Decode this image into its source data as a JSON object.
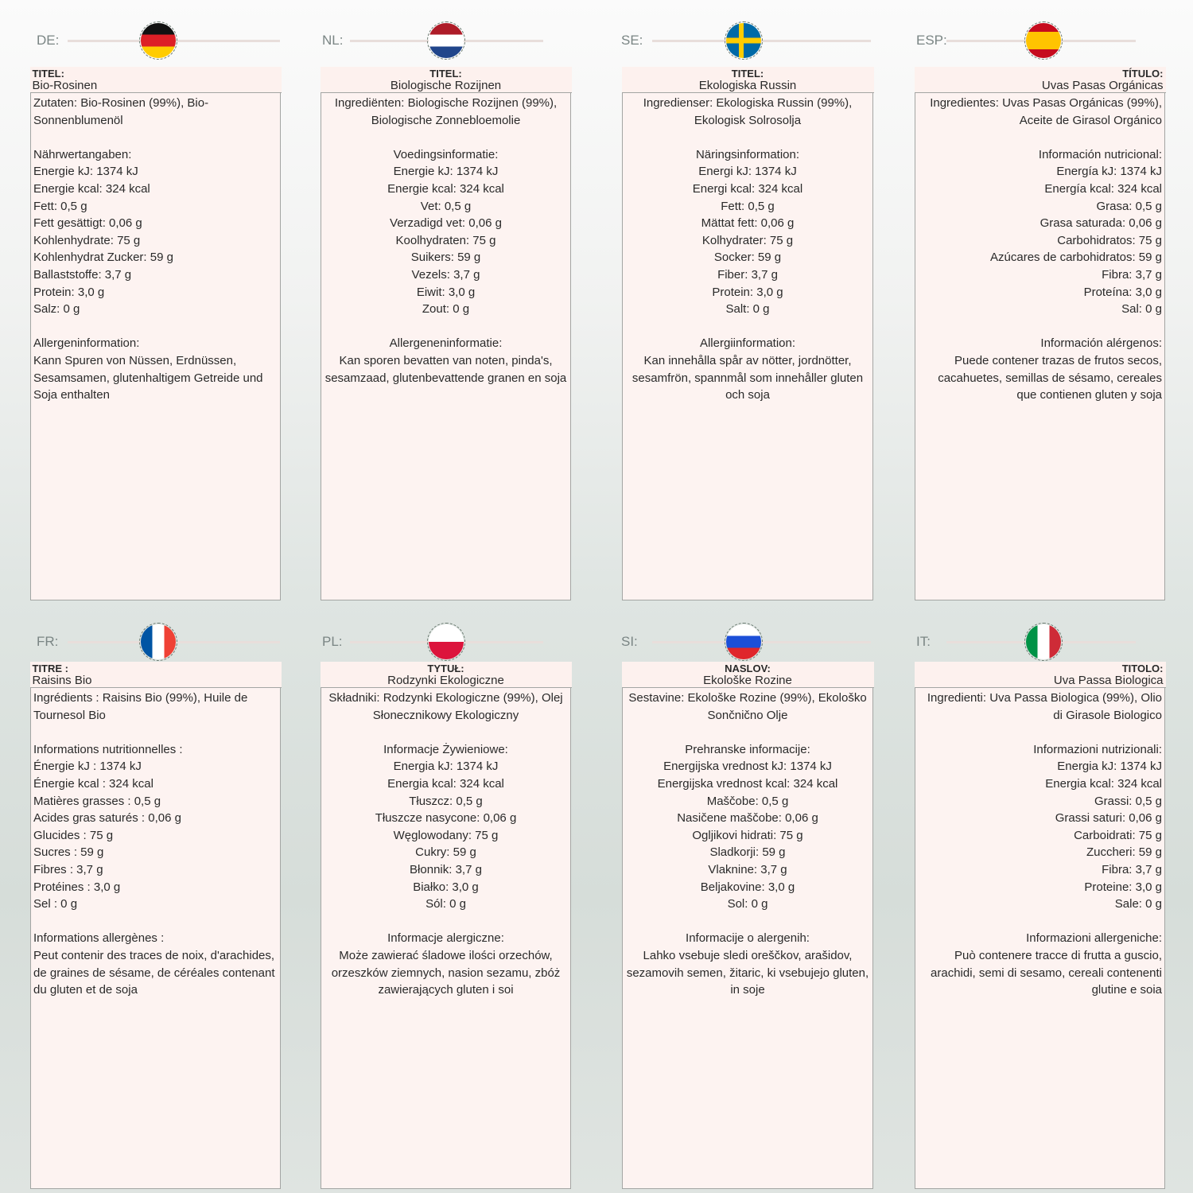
{
  "panels": [
    {
      "code": "DE:",
      "flag": "germany-flag",
      "align": "left",
      "label": "TITEL:",
      "title": "Bio-Rosinen",
      "ingredients": "Zutaten: Bio-Rosinen (99%), Bio-Sonnenblumenöl",
      "nutrition_heading": "Nährwertangaben:",
      "nutrition": [
        "Energie kJ: 1374 kJ",
        "Energie kcal: 324 kcal",
        "Fett: 0,5 g",
        "Fett gesättigt: 0,06 g",
        "Kohlenhydrate: 75 g",
        "Kohlenhydrat Zucker: 59 g",
        "Ballaststoffe: 3,7 g",
        "Protein: 3,0 g",
        "Salz: 0 g"
      ],
      "allergen_heading": "Allergeninformation:",
      "allergen_text": "Kann Spuren von Nüssen, Erdnüssen, Sesamsamen, glutenhaltigem Getreide und Soja enthalten"
    },
    {
      "code": "NL:",
      "flag": "netherlands-flag",
      "align": "center",
      "label": "TITEL:",
      "title": "Biologische Rozijnen",
      "ingredients": "Ingrediënten: Biologische Rozijnen (99%), Biologische Zonnebloemolie",
      "nutrition_heading": "Voedingsinformatie:",
      "nutrition": [
        "Energie kJ: 1374 kJ",
        "Energie kcal: 324 kcal",
        "Vet: 0,5 g",
        "Verzadigd vet: 0,06 g",
        "Koolhydraten: 75 g",
        "Suikers: 59 g",
        "Vezels: 3,7 g",
        "Eiwit: 3,0 g",
        "Zout: 0 g"
      ],
      "allergen_heading": "Allergeneninformatie:",
      "allergen_text": "Kan sporen bevatten van noten, pinda's, sesamzaad, glutenbevattende granen en soja"
    },
    {
      "code": "SE:",
      "flag": "sweden-flag",
      "align": "center",
      "label": "TITEL:",
      "title": "Ekologiska Russin",
      "ingredients": "Ingredienser: Ekologiska Russin (99%), Ekologisk Solrosolja",
      "nutrition_heading": "Näringsinformation:",
      "nutrition": [
        "Energi kJ: 1374 kJ",
        "Energi kcal: 324 kcal",
        "Fett: 0,5 g",
        "Mättat fett: 0,06 g",
        "Kolhydrater: 75 g",
        "Socker: 59 g",
        "Fiber: 3,7 g",
        "Protein: 3,0 g",
        "Salt: 0 g"
      ],
      "allergen_heading": "Allergiinformation:",
      "allergen_text": "Kan innehålla spår av nötter, jordnötter, sesamfrön, spannmål som innehåller gluten och soja"
    },
    {
      "code": "ESP:",
      "flag": "spain-flag",
      "align": "right",
      "label": "TÍTULO:",
      "title": "Uvas Pasas Orgánicas",
      "ingredients": "Ingredientes: Uvas Pasas Orgánicas (99%), Aceite de Girasol Orgánico",
      "nutrition_heading": "Información nutricional:",
      "nutrition": [
        "Energía kJ: 1374 kJ",
        "Energía kcal: 324 kcal",
        "Grasa: 0,5 g",
        "Grasa saturada: 0,06 g",
        "Carbohidratos: 75 g",
        "Azúcares de carbohidratos: 59 g",
        "Fibra: 3,7 g",
        "Proteína: 3,0 g",
        "Sal: 0 g"
      ],
      "allergen_heading": "Información alérgenos:",
      "allergen_text": "Puede contener trazas de frutos secos, cacahuetes, semillas de sésamo, cereales que contienen gluten y soja"
    },
    {
      "code": "FR:",
      "flag": "france-flag",
      "align": "left",
      "label": "TITRE :",
      "title": "Raisins Bio",
      "ingredients": "Ingrédients : Raisins Bio (99%), Huile de Tournesol Bio",
      "nutrition_heading": "Informations nutritionnelles :",
      "nutrition": [
        "Énergie kJ : 1374 kJ",
        "Énergie kcal : 324 kcal",
        "Matières grasses : 0,5 g",
        "Acides gras saturés : 0,06 g",
        "Glucides : 75 g",
        "Sucres : 59 g",
        "Fibres : 3,7 g",
        "Protéines : 3,0 g",
        "Sel : 0 g"
      ],
      "allergen_heading": "Informations allergènes :",
      "allergen_text": "Peut contenir des traces de noix, d'arachides, de graines de sésame, de céréales contenant du gluten et de soja"
    },
    {
      "code": "PL:",
      "flag": "poland-flag",
      "align": "center",
      "label": "TYTUŁ:",
      "title": "Rodzynki Ekologiczne",
      "ingredients": "Składniki: Rodzynki Ekologiczne (99%), Olej Słonecznikowy Ekologiczny",
      "nutrition_heading": "Informacje Żywieniowe:",
      "nutrition": [
        "Energia kJ: 1374 kJ",
        "Energia kcal: 324 kcal",
        "Tłuszcz: 0,5 g",
        "Tłuszcze nasycone: 0,06 g",
        "Węglowodany: 75 g",
        "Cukry: 59 g",
        "Błonnik: 3,7 g",
        "Białko: 3,0 g",
        "Sól: 0 g"
      ],
      "allergen_heading": "Informacje alergiczne:",
      "allergen_text": "Może zawierać śladowe ilości orzechów, orzeszków ziemnych, nasion sezamu, zbóż zawierających gluten i soi"
    },
    {
      "code": "SI:",
      "flag": "slovenia-flag",
      "align": "center",
      "label": "NASLOV:",
      "title": "Ekološke Rozine",
      "ingredients": "Sestavine: Ekološke Rozine (99%), Ekološko Sončnično Olje",
      "nutrition_heading": "Prehranske informacije:",
      "nutrition": [
        "Energijska vrednost kJ: 1374 kJ",
        "Energijska vrednost kcal: 324 kcal",
        "Maščobe: 0,5 g",
        "Nasičene maščobe: 0,06 g",
        "Ogljikovi hidrati: 75 g",
        "Sladkorji: 59 g",
        "Vlaknine: 3,7 g",
        "Beljakovine: 3,0 g",
        "Sol: 0 g"
      ],
      "allergen_heading": "Informacije o alergenih:",
      "allergen_text": "Lahko vsebuje sledi oreščkov, arašidov, sezamovih semen, žitaric, ki vsebujejo gluten, in soje"
    },
    {
      "code": "IT:",
      "flag": "italy-flag",
      "align": "right",
      "label": "TITOLO:",
      "title": "Uva Passa Biologica",
      "ingredients": "Ingredienti: Uva Passa Biologica (99%), Olio di Girasole Biologico",
      "nutrition_heading": "Informazioni nutrizionali:",
      "nutrition": [
        "Energia kJ: 1374 kJ",
        "Energia kcal: 324 kcal",
        "Grassi: 0,5 g",
        "Grassi saturi: 0,06 g",
        "Carboidrati: 75 g",
        "Zuccheri: 59 g",
        "Fibra: 3,7 g",
        "Proteine: 3,0 g",
        "Sale: 0 g"
      ],
      "allergen_heading": "Informazioni allergeniche:",
      "allergen_text": "Può contenere tracce di frutta a guscio, arachidi, semi di sesamo, cereali contenenti glutine e soia"
    }
  ]
}
